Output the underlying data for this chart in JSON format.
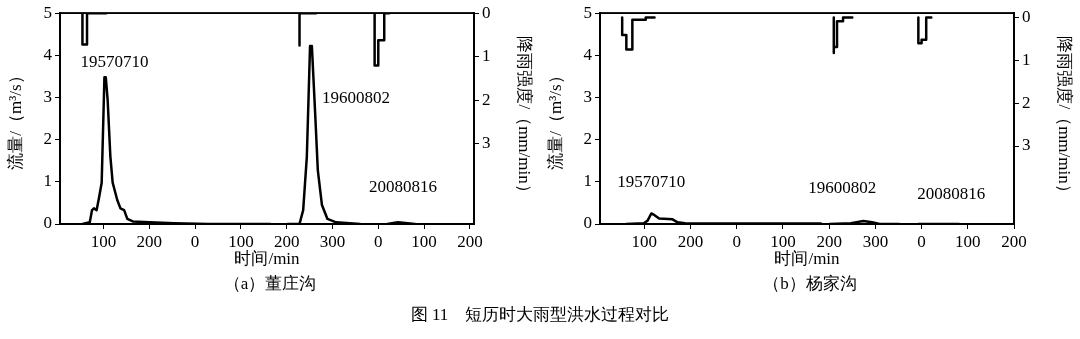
{
  "chart_data": [
    {
      "type": "line",
      "title": "图 11　短历时大雨型洪水过程对比",
      "subtitle": "（a）董庄沟",
      "xlabel": "时间/min",
      "ylabel": "流量/（m³/s）",
      "y2label": "降雨强度/（mm/min）",
      "xlim": [
        5,
        909
      ],
      "xticks": [
        100,
        200
      ],
      "ylim": [
        0,
        5
      ],
      "yticks": [
        0,
        1,
        2,
        3,
        4,
        5
      ],
      "y2lim": [
        4.84,
        0
      ],
      "y2ticks": [
        0,
        1,
        2,
        3
      ],
      "grid": false,
      "legend": false,
      "marker": "none",
      "line_style": "solid",
      "series": [
        {
          "type": "line",
          "name": "19570710",
          "color": "#000000",
          "x": [
            54,
            70,
            75,
            79,
            85,
            90,
            96,
            102,
            105,
            109,
            115,
            120,
            130,
            137,
            145,
            152,
            164,
            201,
            254,
            329,
            464
          ],
          "values": [
            0,
            0.04,
            0.33,
            0.37,
            0.33,
            0.61,
            0.98,
            3.48,
            3.48,
            2.95,
            1.6,
            0.98,
            0.57,
            0.37,
            0.33,
            0.12,
            0.06,
            0.04,
            0.02,
            0,
            0
          ]
        },
        {
          "type": "step",
          "axis": "y2",
          "color": "#000000",
          "x": [
            54,
            54,
            64,
            106
          ],
          "values": [
            0,
            0.5,
            0.72,
            0
          ]
        }
      ]
    },
    {
      "type": "line",
      "xlim": [
        -295,
        609
      ],
      "xticks": [
        0,
        100,
        200,
        300
      ],
      "ylim": [
        0,
        5
      ],
      "yticks": [
        0,
        1,
        2,
        3,
        4,
        5
      ],
      "y2lim": [
        4.84,
        0
      ],
      "y2ticks": [
        0,
        1,
        2,
        3
      ],
      "tick_labels": "x",
      "grid": false,
      "legend": false,
      "marker": "none",
      "line_style": "solid",
      "series": [
        {
          "type": "line",
          "name": "19600802",
          "color": "#000000",
          "x": [
            202,
            228,
            236,
            244,
            251,
            255,
            262,
            268,
            277,
            289,
            308,
            360
          ],
          "values": [
            0,
            0,
            0.33,
            1.6,
            4.22,
            4.22,
            2.66,
            1.27,
            0.45,
            0.12,
            0.04,
            0
          ]
        },
        {
          "type": "step",
          "axis": "y2",
          "color": "#000000",
          "x": [
            228,
            228,
            264
          ],
          "values": [
            0,
            0.74,
            0
          ]
        }
      ]
    },
    {
      "type": "line",
      "xlim": [
        -695,
        209
      ],
      "xticks": [
        0,
        100,
        200
      ],
      "ylim": [
        0,
        5
      ],
      "yticks": [
        0,
        1,
        2,
        3,
        4,
        5
      ],
      "y2lim": [
        4.84,
        0
      ],
      "y2ticks": [
        0,
        1,
        2,
        3
      ],
      "tick_labels": "x",
      "grid": false,
      "legend": false,
      "marker": "none",
      "line_style": "solid",
      "series": [
        {
          "type": "line",
          "name": "20080816",
          "color": "#000000",
          "x": [
            20,
            43,
            80
          ],
          "values": [
            0,
            0.04,
            0
          ]
        },
        {
          "type": "step",
          "axis": "y2",
          "color": "#000000",
          "x": [
            -8,
            -8,
            0,
            13,
            24
          ],
          "values": [
            0,
            0.4,
            1.2,
            0.62,
            0
          ]
        }
      ]
    },
    {
      "type": "line",
      "subtitle": "（b）杨家沟",
      "xlabel": "时间/min",
      "ylabel": "流量/（m³/s）",
      "y2label": "降雨强度/（mm/min）",
      "xlim": [
        4,
        900
      ],
      "xticks": [
        100,
        200
      ],
      "ylim": [
        0,
        5
      ],
      "yticks": [
        0,
        1,
        2,
        3,
        4,
        5
      ],
      "y2lim": [
        4.82,
        -0.1
      ],
      "y2ticks": [
        0,
        1,
        2,
        3
      ],
      "grid": false,
      "legend": false,
      "marker": "none",
      "line_style": "solid",
      "series": [
        {
          "type": "line",
          "name": "19570710",
          "color": "#000000",
          "x": [
            61,
            99,
            107,
            115,
            122,
            132,
            161,
            172,
            188,
            233,
            482
          ],
          "values": [
            0,
            0.02,
            0.08,
            0.25,
            0.21,
            0.13,
            0.11,
            0.04,
            0.02,
            0.01,
            0.01
          ]
        },
        {
          "type": "step",
          "axis": "y2",
          "color": "#000000",
          "x": [
            52,
            52,
            61,
            74,
            103,
            122
          ],
          "values": [
            0,
            0.29,
            0.41,
            0.75,
            0.05,
            0
          ]
        }
      ]
    },
    {
      "type": "line",
      "xlim": [
        -296,
        600
      ],
      "xticks": [
        0,
        100,
        200,
        300
      ],
      "ylim": [
        0,
        5
      ],
      "yticks": [
        0,
        1,
        2,
        3,
        4,
        5
      ],
      "y2lim": [
        4.82,
        -0.1
      ],
      "y2ticks": [
        0,
        1,
        2,
        3
      ],
      "tick_labels": "x",
      "grid": false,
      "legend": false,
      "marker": "none",
      "line_style": "solid",
      "series": [
        {
          "type": "line",
          "name": "19600802",
          "color": "#000000",
          "x": [
            201,
            247,
            274,
            293,
            309,
            351
          ],
          "values": [
            0,
            0.02,
            0.07,
            0.04,
            0,
            0
          ]
        },
        {
          "type": "step",
          "axis": "y2",
          "color": "#000000",
          "x": [
            210,
            210,
            217,
            230,
            250
          ],
          "values": [
            0,
            0.83,
            0.69,
            0.09,
            0
          ]
        }
      ]
    },
    {
      "type": "line",
      "xlim": [
        -696,
        200
      ],
      "xticks": [
        0,
        100,
        200
      ],
      "ylim": [
        0,
        5
      ],
      "yticks": [
        0,
        1,
        2,
        3,
        4,
        5
      ],
      "y2lim": [
        4.82,
        -0.1
      ],
      "y2ticks": [
        0,
        1,
        2,
        3
      ],
      "tick_labels": "x",
      "grid": false,
      "legend": false,
      "marker": "none",
      "line_style": "solid",
      "series": [
        {
          "type": "line",
          "name": "20080816",
          "color": "#000000",
          "x": [
            -7,
            81
          ],
          "values": [
            0,
            0
          ]
        },
        {
          "type": "step",
          "axis": "y2",
          "color": "#000000",
          "x": [
            -7,
            -7,
            0,
            10,
            21
          ],
          "values": [
            0,
            0.23,
            0.6,
            0.52,
            0
          ]
        }
      ]
    }
  ]
}
